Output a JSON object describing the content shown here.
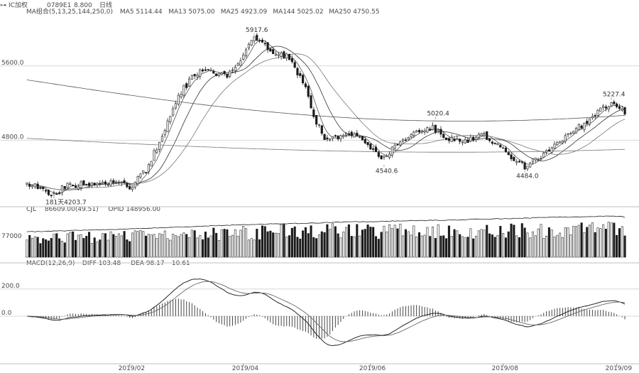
{
  "header": {
    "symbol": "IC加权",
    "code": "0789E1",
    "price": "8.800",
    "period": "日线"
  },
  "panels": {
    "price": {
      "legend": [
        "MA组合(5,13,25,144,250,0)",
        "MA5 5114.44",
        "MA13 5075.00",
        "MA25 4923.09",
        "MA144 5025.02",
        "MA250 4750.55"
      ],
      "ticks": [
        {
          "label": "5600.0",
          "value": 5600
        },
        {
          "label": "4800.0",
          "value": 4800
        }
      ],
      "annotations": [
        {
          "label": "5917.6",
          "index": 84,
          "value": 5917.6,
          "pos": "above"
        },
        {
          "label": "5020.4",
          "index": 151,
          "value": 5020.4,
          "pos": "above"
        },
        {
          "label": "4540.6",
          "index": 132,
          "value": 4540.6,
          "pos": "below"
        },
        {
          "label": "4484.0",
          "index": 184,
          "value": 4484.0,
          "pos": "below"
        },
        {
          "label": "5227.4",
          "index": 216,
          "value": 5227.4,
          "pos": "above"
        },
        {
          "label": "181天4203.7",
          "index": 10,
          "value": 4203.7,
          "pos": "below"
        }
      ]
    },
    "volume": {
      "legend": [
        "CJL",
        "86609.00(49.51)",
        "OPID 148956.00"
      ],
      "ticks": [
        {
          "label": "77000",
          "value": 77000
        }
      ]
    },
    "macd": {
      "legend": [
        "MACD(12,26,9)",
        "DIFF 103.48",
        "DEA 98.17",
        "10.61"
      ],
      "ticks": [
        {
          "label": "200.0",
          "value": 200
        },
        {
          "label": "0.0",
          "value": 0
        }
      ]
    }
  },
  "x_axis": {
    "labels": [
      {
        "label": "2019/02",
        "index": 38
      },
      {
        "label": "2019/04",
        "index": 80
      },
      {
        "label": "2019/06",
        "index": 127
      },
      {
        "label": "2019/08",
        "index": 176
      },
      {
        "label": "2019/09",
        "index": 218
      }
    ]
  },
  "colors": {
    "up": "#444444",
    "down": "#1a1a1a",
    "grid": "#d9d9d9",
    "line": "#333333"
  },
  "chart_data": {
    "type": "candlestick",
    "bars": 222,
    "price_anchors": [
      [
        0,
        4320
      ],
      [
        6,
        4280
      ],
      [
        10,
        4210
      ],
      [
        14,
        4300
      ],
      [
        22,
        4330
      ],
      [
        32,
        4340
      ],
      [
        38,
        4300
      ],
      [
        44,
        4470
      ],
      [
        50,
        4850
      ],
      [
        56,
        5280
      ],
      [
        62,
        5520
      ],
      [
        68,
        5540
      ],
      [
        74,
        5490
      ],
      [
        80,
        5720
      ],
      [
        84,
        5900
      ],
      [
        90,
        5760
      ],
      [
        96,
        5700
      ],
      [
        102,
        5450
      ],
      [
        106,
        5070
      ],
      [
        110,
        4820
      ],
      [
        116,
        4830
      ],
      [
        120,
        4880
      ],
      [
        126,
        4760
      ],
      [
        132,
        4600
      ],
      [
        138,
        4790
      ],
      [
        144,
        4870
      ],
      [
        150,
        4940
      ],
      [
        156,
        4820
      ],
      [
        162,
        4780
      ],
      [
        168,
        4860
      ],
      [
        174,
        4770
      ],
      [
        180,
        4600
      ],
      [
        184,
        4520
      ],
      [
        190,
        4640
      ],
      [
        196,
        4760
      ],
      [
        202,
        4900
      ],
      [
        206,
        4970
      ],
      [
        210,
        5080
      ],
      [
        214,
        5180
      ],
      [
        216,
        5210
      ],
      [
        220,
        5110
      ],
      [
        221,
        5115
      ]
    ],
    "volume_anchors": [
      [
        0,
        70000
      ],
      [
        30,
        72000
      ],
      [
        60,
        80000
      ],
      [
        85,
        90000
      ],
      [
        110,
        95000
      ],
      [
        140,
        93000
      ],
      [
        170,
        96000
      ],
      [
        200,
        98000
      ],
      [
        221,
        99000
      ]
    ],
    "oi_anchors": [
      [
        0,
        92000
      ],
      [
        40,
        104000
      ],
      [
        80,
        118000
      ],
      [
        120,
        128000
      ],
      [
        160,
        136000
      ],
      [
        200,
        146000
      ],
      [
        215,
        150000
      ],
      [
        221,
        146000
      ]
    ],
    "y_range": {
      "price": [
        4130,
        6080
      ],
      "volume": [
        0,
        160000
      ],
      "macd": [
        -320,
        330
      ]
    }
  }
}
